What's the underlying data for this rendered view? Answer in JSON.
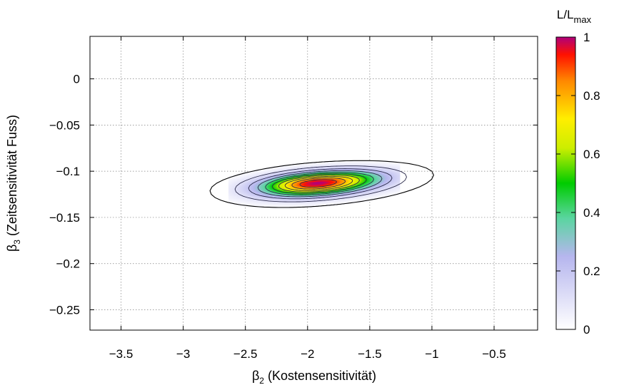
{
  "chart_data": {
    "type": "heatmap",
    "title": "",
    "xlabel": {
      "main": "β",
      "sub": "2",
      "rest": " (Kostensensitivität)"
    },
    "ylabel": {
      "main": "β",
      "sub": "3",
      "rest": " (Zeitsensitivität Fuss)"
    },
    "colorbar_label": {
      "main": "L/L",
      "sub": "max"
    },
    "xlim": [
      -3.75,
      -0.15
    ],
    "ylim": [
      -0.272,
      0.046
    ],
    "x_ticks": [
      -3.5,
      -3,
      -2.5,
      -2,
      -1.5,
      -1,
      -0.5
    ],
    "x_tick_labels": [
      "−3.5",
      "−3",
      "−2.5",
      "−2",
      "−1.5",
      "−1",
      "−0.5"
    ],
    "y_ticks": [
      0,
      -0.05,
      -0.1,
      -0.15,
      -0.2,
      -0.25
    ],
    "y_tick_labels": [
      "0",
      "−0.05",
      "−0.1",
      "−0.15",
      "−0.2",
      "−0.25"
    ],
    "colorbar_range": [
      0,
      1
    ],
    "colorbar_ticks": [
      0,
      0.2,
      0.4,
      0.6,
      0.8,
      1
    ],
    "colorbar_tick_labels": [
      "0",
      "0.2",
      "0.4",
      "0.6",
      "0.8",
      "1"
    ],
    "grid": true,
    "peak": {
      "x": -1.92,
      "y": -0.113
    },
    "contour_levels": [
      0.02,
      0.1,
      0.2,
      0.3,
      0.4,
      0.5,
      0.6,
      0.7,
      0.8,
      0.9
    ],
    "colormap": [
      {
        "v": 0.0,
        "color": "#ffffff"
      },
      {
        "v": 0.25,
        "color": "#b6b6ee"
      },
      {
        "v": 0.38,
        "color": "#5ad5a0"
      },
      {
        "v": 0.5,
        "color": "#00cc00"
      },
      {
        "v": 0.62,
        "color": "#ccee00"
      },
      {
        "v": 0.72,
        "color": "#ffee00"
      },
      {
        "v": 0.85,
        "color": "#ff8800"
      },
      {
        "v": 0.94,
        "color": "#ff1100"
      },
      {
        "v": 1.0,
        "color": "#b0007a"
      }
    ]
  }
}
